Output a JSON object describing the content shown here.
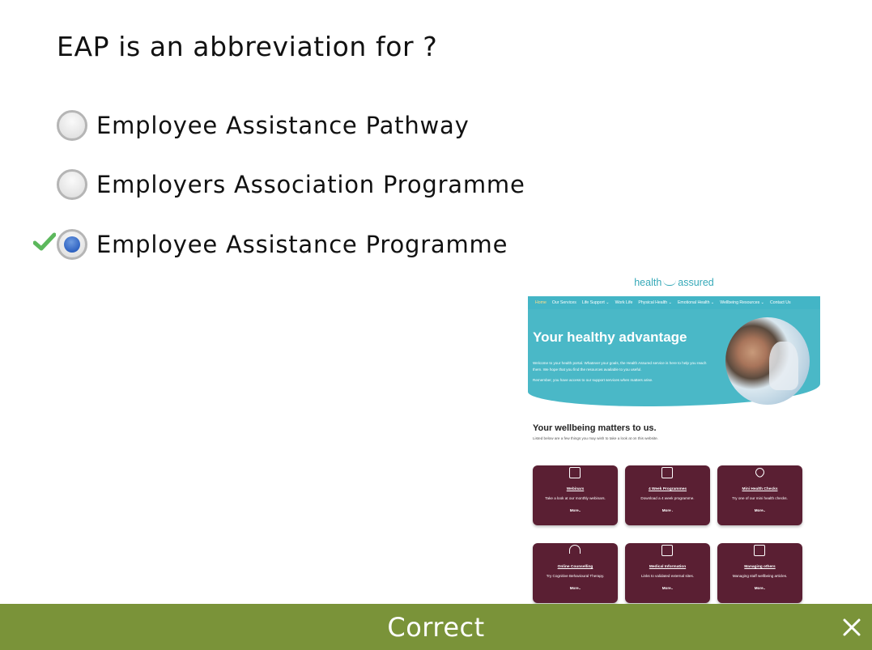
{
  "question": {
    "text": "EAP is an abbreviation for ?"
  },
  "options": [
    {
      "label": "Employee Assistance Pathway",
      "selected": false
    },
    {
      "label": "Employers Association Programme",
      "selected": false
    },
    {
      "label": "Employee Assistance Programme",
      "selected": true,
      "marked_correct": true
    }
  ],
  "image": {
    "logo": {
      "left": "health",
      "right": "assured"
    },
    "nav": [
      "Home",
      "Our Services",
      "Life Support ⌄",
      "Work Life",
      "Physical Health ⌄",
      "Emotional Health ⌄",
      "Wellbeing Resources ⌄",
      "Contact Us"
    ],
    "hero": {
      "title": "Your healthy advantage",
      "text": "Welcome to your health portal. Whatever your goals, the Health Assured service is here to help you reach them. We hope that you find the resources available to you useful.",
      "text2": "Remember, you have access to our support services when matters arise."
    },
    "section": {
      "title": "Your wellbeing matters to us.",
      "subtitle": "Listed below are a few things you may wish to take a look at on this website."
    },
    "cards": [
      {
        "icon": "presentation-icon",
        "title": "Webinars",
        "desc": "Take a look at our monthly webinars.",
        "more": "More.."
      },
      {
        "icon": "document-icon",
        "title": "4 Week Programmes",
        "desc": "Download a 4 week programme.",
        "more": "More ."
      },
      {
        "icon": "heart-icon",
        "title": "Mini Health Checks",
        "desc": "Try one of our mini health checks.",
        "more": "More.."
      },
      {
        "icon": "headphones-icon",
        "title": "Online Counselling",
        "desc": "Try Cognitive Behavioural Therapy.",
        "more": "More.."
      },
      {
        "icon": "pencil-icon",
        "title": "Medical Information",
        "desc": "Links to validated external sites.",
        "more": "More.."
      },
      {
        "icon": "archive-icon",
        "title": "Managing others",
        "desc": "Managing staff wellbeing articles.",
        "more": "More.."
      }
    ]
  },
  "feedback": {
    "text": "Correct",
    "status": "correct",
    "color": "#7a9339"
  },
  "colors": {
    "radio_selected": "#2f63c2",
    "check": "#5cb85c",
    "card": "#5a1f33",
    "hero": "#4ab8c7"
  }
}
